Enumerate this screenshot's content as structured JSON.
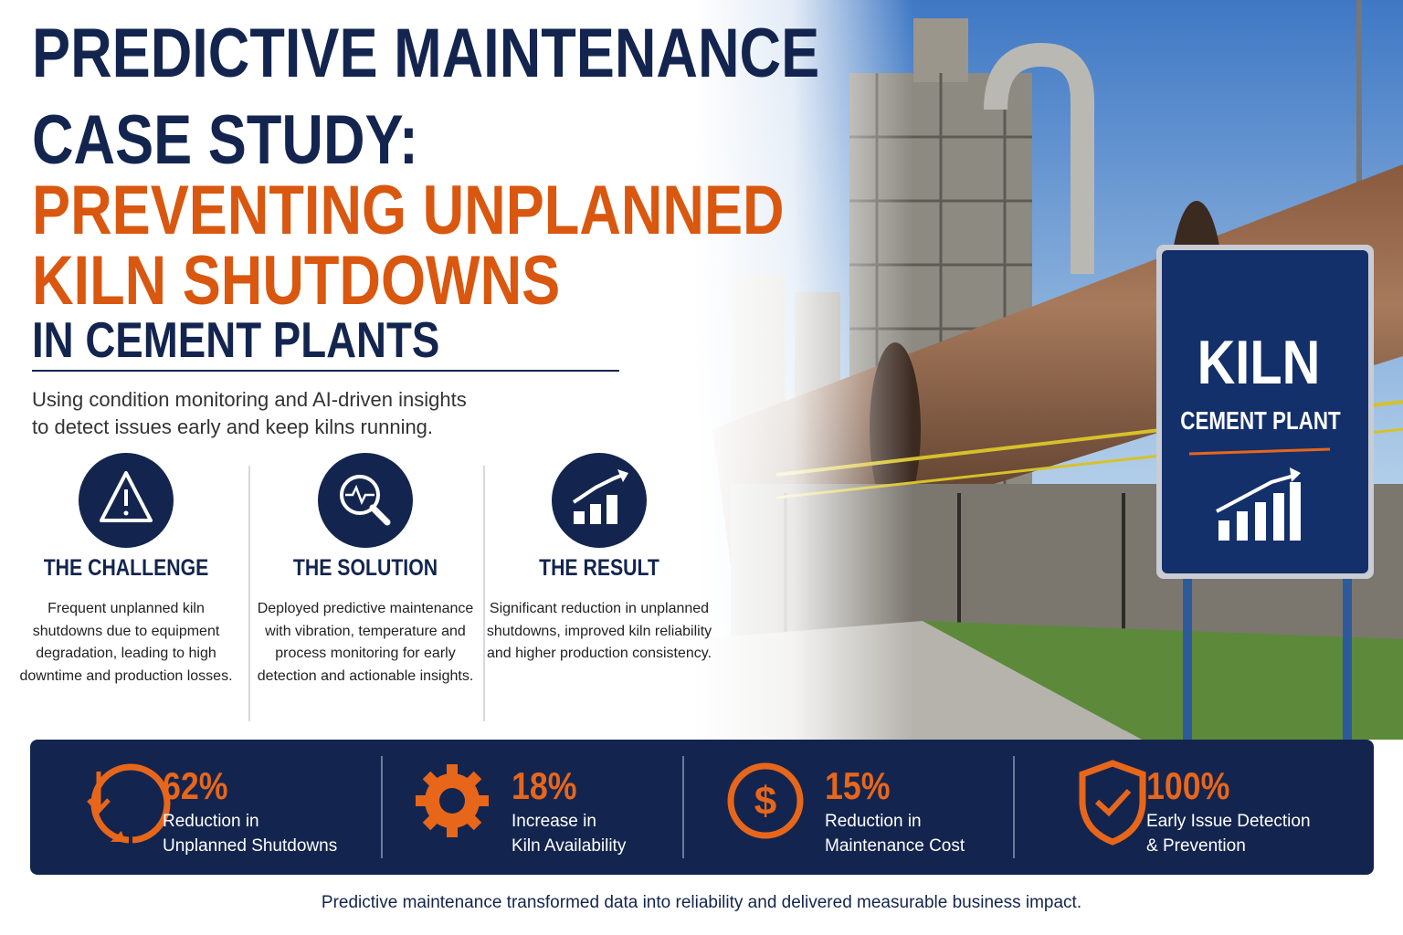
{
  "header": {
    "title_lines": [
      "PREDICTIVE MAINTENANCE",
      "CASE STUDY:"
    ],
    "highlight_lines": [
      "PREVENTING UNPLANNED",
      "KILN SHUTDOWNS"
    ],
    "subtitle_line": "IN CEMENT PLANTS",
    "description_lines": [
      "Using condition monitoring and AI-driven insights",
      "to detect issues early and keep kilns running."
    ]
  },
  "sign": {
    "title": "KILN",
    "subtitle": "CEMENT PLANT"
  },
  "sections": [
    {
      "heading": "THE CHALLENGE",
      "text": "Frequent unplanned kiln shutdowns due to equipment degradation, leading to high downtime and production losses."
    },
    {
      "heading": "THE SOLUTION",
      "text": "Deployed predictive maintenance with vibration, temperature and process monitoring for early detection and actionable insights."
    },
    {
      "heading": "THE RESULT",
      "text": "Significant reduction in unplanned shutdowns, improved kiln reliability and higher production consistency."
    }
  ],
  "stats": [
    {
      "value": "62%",
      "label_lines": [
        "Reduction in",
        "Unplanned Shutdowns"
      ]
    },
    {
      "value": "18%",
      "label_lines": [
        "Increase in",
        "Kiln Availability"
      ]
    },
    {
      "value": "15%",
      "label_lines": [
        "Reduction in",
        "Maintenance Cost"
      ]
    },
    {
      "value": "100%",
      "label_lines": [
        "Early Issue Detection",
        "& Prevention"
      ]
    }
  ],
  "footer": "Predictive maintenance transformed data into reliability and delivered measurable business impact."
}
